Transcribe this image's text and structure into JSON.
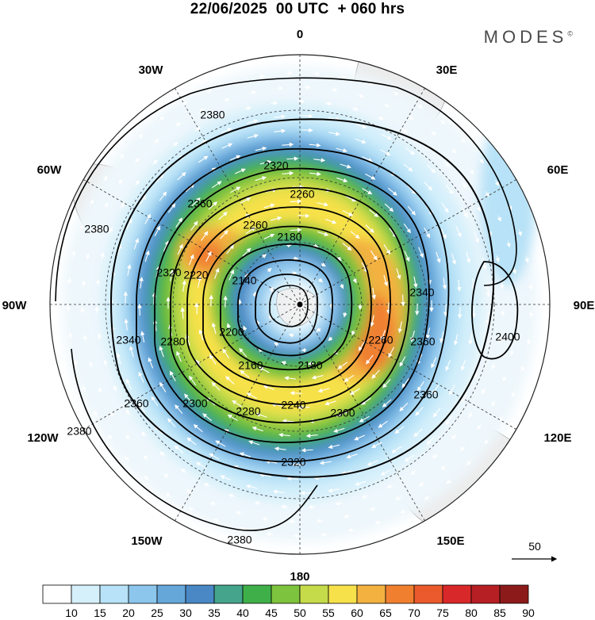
{
  "header": {
    "title": "22/06/2025  00 UTC  + 060 hrs",
    "logo_text": "MODES",
    "logo_mark": "©"
  },
  "map": {
    "projection": "polar stereographic (South Pole)",
    "meridian_labels": [
      "0",
      "30E",
      "60E",
      "90E",
      "120E",
      "150E",
      "180",
      "150W",
      "120W",
      "90W",
      "60W",
      "30W"
    ],
    "contour_labels": [
      "2380",
      "2380",
      "2380",
      "2380",
      "2360",
      "2360",
      "2360",
      "2360",
      "2340",
      "2340",
      "2320",
      "2320",
      "2320",
      "2300",
      "2300",
      "2280",
      "2280",
      "2260",
      "2260",
      "2260",
      "2240",
      "2220",
      "2200",
      "2180",
      "2180",
      "2160",
      "2140",
      "2400"
    ],
    "reference_vector_label": "50"
  },
  "colorbar": {
    "labels": [
      "10",
      "15",
      "20",
      "25",
      "30",
      "35",
      "40",
      "45",
      "50",
      "55",
      "60",
      "65",
      "70",
      "75",
      "80",
      "85",
      "90"
    ],
    "colors": [
      "#ffffff",
      "#d5f0fb",
      "#b7e2f7",
      "#8dc6ec",
      "#66a7da",
      "#4988c5",
      "#44a48c",
      "#3fb049",
      "#7ec33d",
      "#c5db49",
      "#f6e14a",
      "#f3b140",
      "#f08030",
      "#ea5a2c",
      "#d9282a",
      "#b61f24",
      "#8c1a1a"
    ]
  },
  "colors": {
    "contour": "#000000",
    "land": "#eeeeee",
    "vectors": "#ffffff"
  }
}
